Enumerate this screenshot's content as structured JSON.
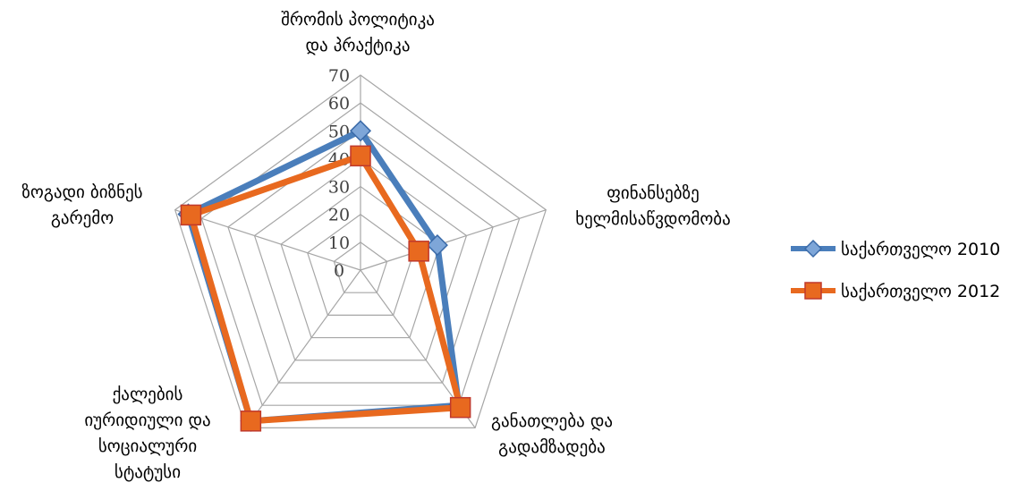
{
  "chart_data": {
    "type": "radar",
    "categories": [
      [
        "შრომის პოლიტიკა",
        "და პრაქტიკა"
      ],
      [
        "ფინანსებზე",
        "ხელმისაწვდომობა"
      ],
      [
        "განათლება და",
        "გადამზადება"
      ],
      [
        "ქალების",
        "იურიდიული და",
        "სოციალური",
        "სტატუსი"
      ],
      [
        "ზოგადი ბიზნეს",
        "გარემო"
      ]
    ],
    "r_ticks": [
      "0",
      "10",
      "20",
      "30",
      "40",
      "50",
      "60",
      "70"
    ],
    "rlim": [
      0,
      70
    ],
    "series": [
      {
        "name": "საქართველო 2010",
        "values": [
          50,
          29,
          60,
          67,
          65
        ],
        "color": "#4a7ebb",
        "marker": "diamond"
      },
      {
        "name": "საქართველო 2012",
        "values": [
          41,
          22,
          61,
          67,
          64
        ],
        "color": "#e8691f",
        "marker": "square"
      }
    ],
    "grid": true,
    "legend": "right"
  }
}
